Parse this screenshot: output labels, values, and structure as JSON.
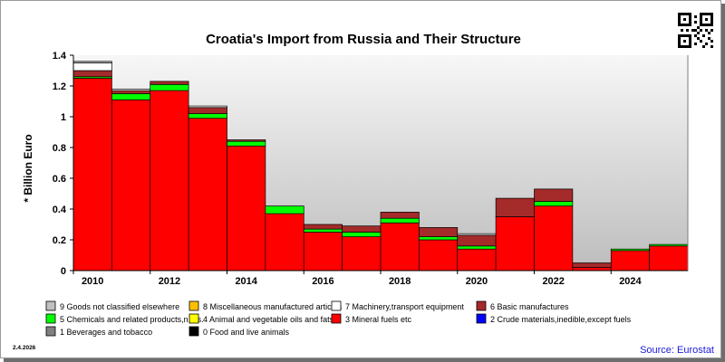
{
  "chart_data": {
    "type": "bar",
    "stacked": true,
    "title": "Croatia's Import from Russia and Their Structure",
    "ylabel": "* Billion Euro",
    "ylim": [
      0,
      1.4
    ],
    "yticks": [
      "0",
      "0.2",
      "0.4",
      "0.6",
      "0.8",
      "1",
      "1.2",
      "1.4"
    ],
    "yticks_values": [
      0,
      0.2,
      0.4,
      0.6,
      0.8,
      1,
      1.2,
      1.4
    ],
    "x": [
      2010,
      2011,
      2012,
      2013,
      2014,
      2015,
      2016,
      2017,
      2018,
      2019,
      2020,
      2021,
      2022,
      2023,
      2024,
      2025
    ],
    "xtick_labels": [
      "2010",
      "2012",
      "2014",
      "2016",
      "2018",
      "2020",
      "2022",
      "2024"
    ],
    "xtick_values": [
      2010,
      2012,
      2014,
      2016,
      2018,
      2020,
      2022,
      2024
    ],
    "grid": false,
    "legend_position": "bottom",
    "series": [
      {
        "name": "0 Food and live animals",
        "color": "#000000",
        "values": [
          0,
          0,
          0,
          0,
          0,
          0,
          0,
          0,
          0,
          0,
          0,
          0,
          0,
          0,
          0,
          0
        ]
      },
      {
        "name": "1 Beverages and tobacco",
        "color": "#808080",
        "values": [
          0,
          0,
          0,
          0,
          0,
          0,
          0,
          0,
          0,
          0,
          0,
          0,
          0,
          0,
          0,
          0
        ]
      },
      {
        "name": "2 Crude materials,inedible,except fuels",
        "color": "#0000ff",
        "values": [
          0,
          0,
          0,
          0,
          0,
          0,
          0,
          0,
          0,
          0,
          0,
          0,
          0,
          0,
          0,
          0
        ]
      },
      {
        "name": "3 Mineral fuels etc",
        "color": "#ff0000",
        "values": [
          1.25,
          1.11,
          1.17,
          0.99,
          0.81,
          0.37,
          0.25,
          0.22,
          0.31,
          0.2,
          0.14,
          0.35,
          0.42,
          0.02,
          0.13,
          0.16
        ]
      },
      {
        "name": "4 Animal and vegetable oils and fats",
        "color": "#ffff00",
        "values": [
          0,
          0,
          0,
          0,
          0,
          0,
          0,
          0,
          0,
          0,
          0,
          0,
          0,
          0,
          0,
          0
        ]
      },
      {
        "name": "5 Chemicals and related products,n.e.s.",
        "color": "#00ff00",
        "values": [
          0.01,
          0.04,
          0.04,
          0.03,
          0.03,
          0.05,
          0.02,
          0.03,
          0.03,
          0.02,
          0.02,
          0.0,
          0.03,
          0.0,
          0.01,
          0.01
        ]
      },
      {
        "name": "6 Basic manufactures",
        "color": "#a52a2a",
        "values": [
          0.04,
          0.02,
          0.02,
          0.04,
          0.01,
          0.0,
          0.03,
          0.04,
          0.04,
          0.06,
          0.07,
          0.12,
          0.08,
          0.03,
          0.0,
          0.0
        ]
      },
      {
        "name": "7 Machinery,transport equipment",
        "color": "#ffffff",
        "values": [
          0.05,
          0.01,
          0.0,
          0.01,
          0.0,
          0.0,
          0.0,
          0.0,
          0.0,
          0.0,
          0.01,
          0.0,
          0.0,
          0.0,
          0.0,
          0.0
        ]
      },
      {
        "name": "8 Miscellaneous manufactured articles",
        "color": "#ffc000",
        "values": [
          0,
          0,
          0,
          0,
          0,
          0,
          0,
          0,
          0,
          0,
          0,
          0,
          0,
          0,
          0,
          0
        ]
      },
      {
        "name": "9 Goods not classified elsewhere",
        "color": "#c0c0c0",
        "values": [
          0.01,
          0,
          0,
          0,
          0,
          0,
          0,
          0,
          0,
          0,
          0,
          0,
          0,
          0,
          0,
          0
        ]
      }
    ],
    "legend_order": [
      9,
      8,
      7,
      6,
      5,
      4,
      3,
      2,
      1,
      0
    ],
    "source": "Source: Eurostat",
    "date": "2.4.2026"
  }
}
